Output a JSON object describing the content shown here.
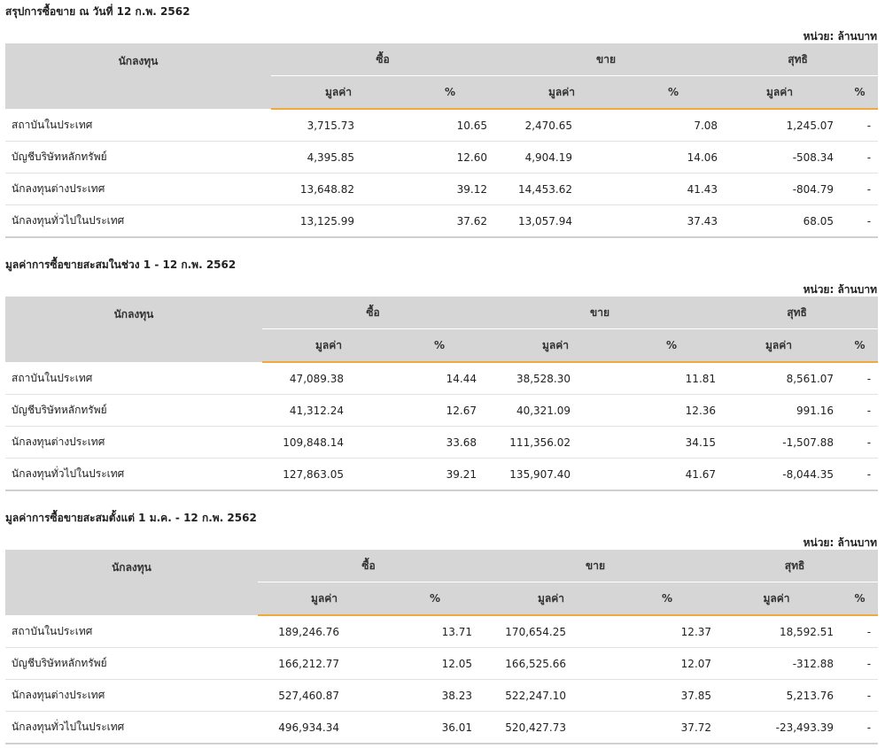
{
  "sections": [
    {
      "title": "สรุปการซื้อขาย ณ วันที่ 12 ก.พ. 2562",
      "unit": "หน่วย: ล้านบาท",
      "headers": {
        "investor": "นักลงทุน",
        "buy": "ซื้อ",
        "sell": "ขาย",
        "net": "สุทธิ",
        "value": "มูลค่า",
        "pct": "%"
      },
      "rows": [
        {
          "name": "สถาบันในประเทศ",
          "buy_value": "3,715.73",
          "buy_pct": "10.65",
          "sell_value": "2,470.65",
          "sell_pct": "7.08",
          "net_value": "1,245.07",
          "net_pct": "-",
          "net_sign": "pos"
        },
        {
          "name": "บัญชีบริษัทหลักทรัพย์",
          "buy_value": "4,395.85",
          "buy_pct": "12.60",
          "sell_value": "4,904.19",
          "sell_pct": "14.06",
          "net_value": "-508.34",
          "net_pct": "-",
          "net_sign": "neg"
        },
        {
          "name": "นักลงทุนต่างประเทศ",
          "buy_value": "13,648.82",
          "buy_pct": "39.12",
          "sell_value": "14,453.62",
          "sell_pct": "41.43",
          "net_value": "-804.79",
          "net_pct": "-",
          "net_sign": "neg"
        },
        {
          "name": "นักลงทุนทั่วไปในประเทศ",
          "buy_value": "13,125.99",
          "buy_pct": "37.62",
          "sell_value": "13,057.94",
          "sell_pct": "37.43",
          "net_value": "68.05",
          "net_pct": "-",
          "net_sign": "pos"
        }
      ]
    },
    {
      "title": "มูลค่าการซื้อขายสะสมในช่วง 1 - 12 ก.พ. 2562",
      "unit": "หน่วย: ล้านบาท",
      "headers": {
        "investor": "นักลงทุน",
        "buy": "ซื้อ",
        "sell": "ขาย",
        "net": "สุทธิ",
        "value": "มูลค่า",
        "pct": "%"
      },
      "rows": [
        {
          "name": "สถาบันในประเทศ",
          "buy_value": "47,089.38",
          "buy_pct": "14.44",
          "sell_value": "38,528.30",
          "sell_pct": "11.81",
          "net_value": "8,561.07",
          "net_pct": "-",
          "net_sign": "pos"
        },
        {
          "name": "บัญชีบริษัทหลักทรัพย์",
          "buy_value": "41,312.24",
          "buy_pct": "12.67",
          "sell_value": "40,321.09",
          "sell_pct": "12.36",
          "net_value": "991.16",
          "net_pct": "-",
          "net_sign": "pos"
        },
        {
          "name": "นักลงทุนต่างประเทศ",
          "buy_value": "109,848.14",
          "buy_pct": "33.68",
          "sell_value": "111,356.02",
          "sell_pct": "34.15",
          "net_value": "-1,507.88",
          "net_pct": "-",
          "net_sign": "neg"
        },
        {
          "name": "นักลงทุนทั่วไปในประเทศ",
          "buy_value": "127,863.05",
          "buy_pct": "39.21",
          "sell_value": "135,907.40",
          "sell_pct": "41.67",
          "net_value": "-8,044.35",
          "net_pct": "-",
          "net_sign": "neg"
        }
      ]
    },
    {
      "title": "มูลค่าการซื้อขายสะสมตั้งแต่ 1 ม.ค. - 12 ก.พ. 2562",
      "unit": "หน่วย: ล้านบาท",
      "headers": {
        "investor": "นักลงทุน",
        "buy": "ซื้อ",
        "sell": "ขาย",
        "net": "สุทธิ",
        "value": "มูลค่า",
        "pct": "%"
      },
      "rows": [
        {
          "name": "สถาบันในประเทศ",
          "buy_value": "189,246.76",
          "buy_pct": "13.71",
          "sell_value": "170,654.25",
          "sell_pct": "12.37",
          "net_value": "18,592.51",
          "net_pct": "-",
          "net_sign": "pos"
        },
        {
          "name": "บัญชีบริษัทหลักทรัพย์",
          "buy_value": "166,212.77",
          "buy_pct": "12.05",
          "sell_value": "166,525.66",
          "sell_pct": "12.07",
          "net_value": "-312.88",
          "net_pct": "-",
          "net_sign": "neg"
        },
        {
          "name": "นักลงทุนต่างประเทศ",
          "buy_value": "527,460.87",
          "buy_pct": "38.23",
          "sell_value": "522,247.10",
          "sell_pct": "37.85",
          "net_value": "5,213.76",
          "net_pct": "-",
          "net_sign": "pos"
        },
        {
          "name": "นักลงทุนทั่วไปในประเทศ",
          "buy_value": "496,934.34",
          "buy_pct": "36.01",
          "sell_value": "520,427.73",
          "sell_pct": "37.72",
          "net_value": "-23,493.39",
          "net_pct": "-",
          "net_sign": "neg"
        }
      ]
    }
  ],
  "colors": {
    "positive": "#2e8b2e",
    "negative": "#d0201e",
    "accent": "#f2a93b",
    "header_bg": "#d6d6d6"
  }
}
